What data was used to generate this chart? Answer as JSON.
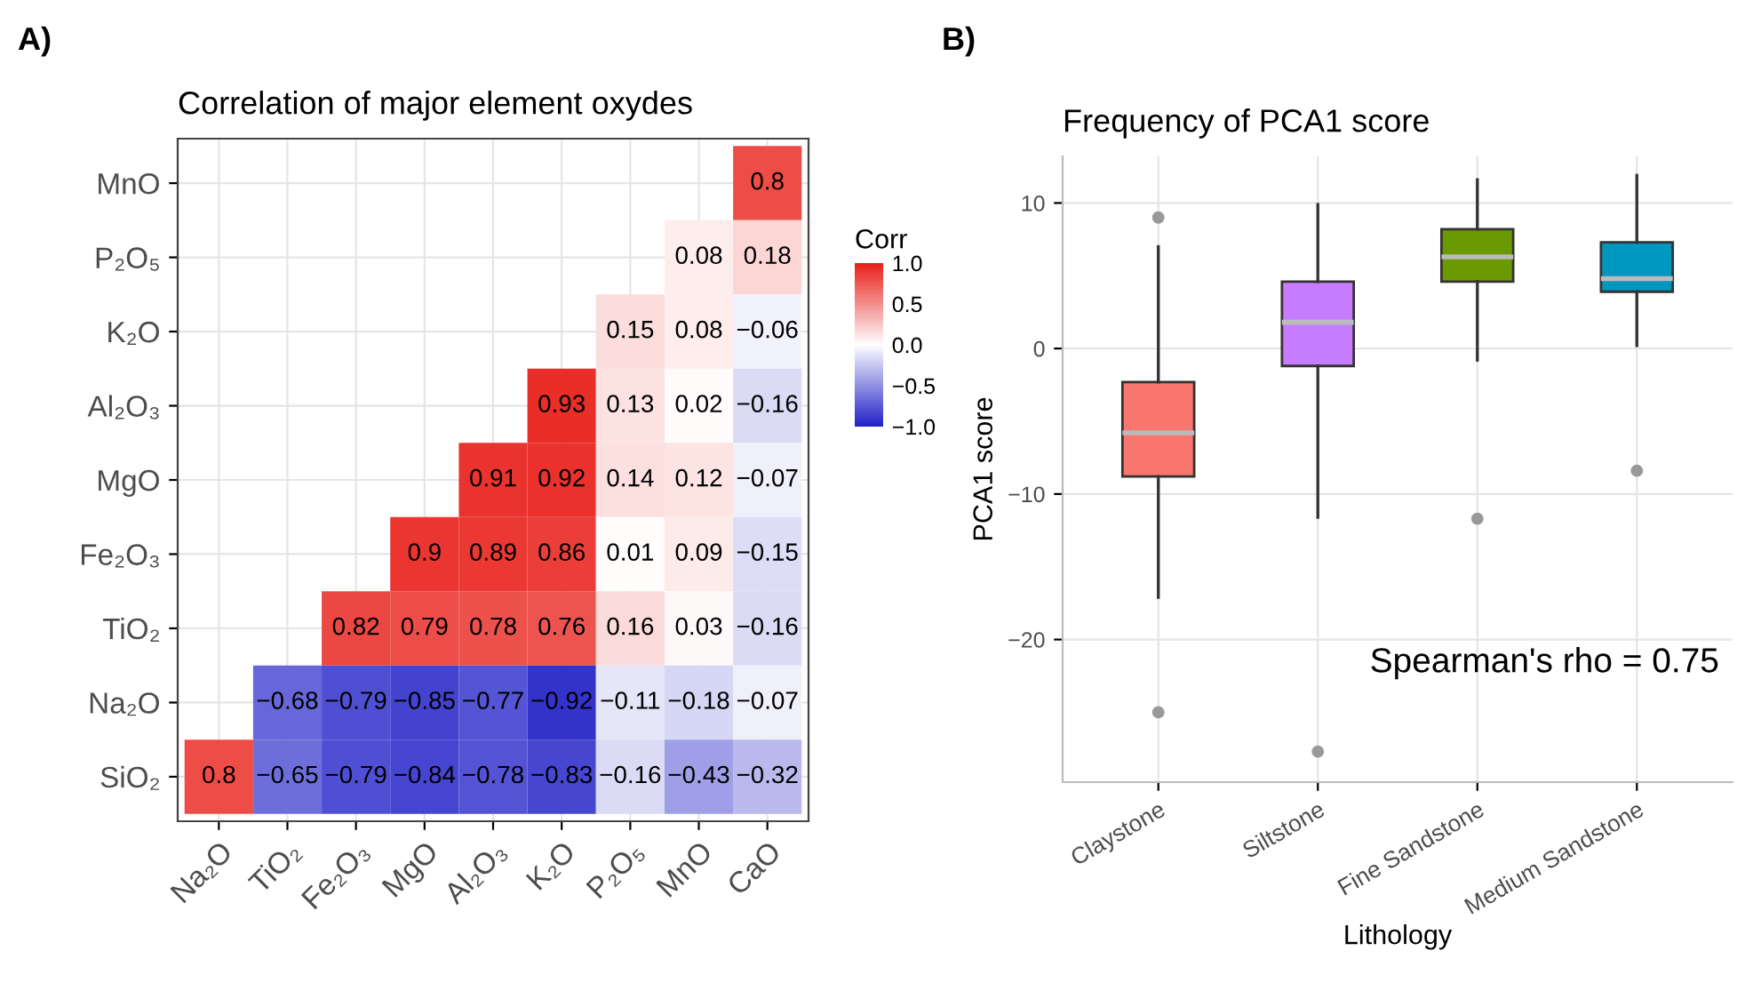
{
  "chart_data": [
    {
      "type": "heatmap",
      "title": "Correlation of major element oxydes",
      "annotations": [
        "A)"
      ],
      "categories": [
        "Na₂O",
        "TiO₂",
        "Fe₂O₃",
        "MgO",
        "Al₂O₃",
        "K₂O",
        "P₂O₅",
        "MnO",
        "CaO"
      ],
      "y_categories": [
        "MnO",
        "P₂O₅",
        "K₂O",
        "Al₂O₃",
        "MgO",
        "Fe₂O₃",
        "TiO₂",
        "Na₂O",
        "SiO₂"
      ],
      "cells": [
        [
          null,
          null,
          null,
          null,
          null,
          null,
          null,
          null,
          0.8
        ],
        [
          null,
          null,
          null,
          null,
          null,
          null,
          null,
          0.08,
          0.18
        ],
        [
          null,
          null,
          null,
          null,
          null,
          null,
          0.15,
          0.08,
          -0.06
        ],
        [
          null,
          null,
          null,
          null,
          null,
          0.93,
          0.13,
          0.02,
          -0.16
        ],
        [
          null,
          null,
          null,
          null,
          0.91,
          0.92,
          0.14,
          0.12,
          -0.07
        ],
        [
          null,
          null,
          null,
          0.9,
          0.89,
          0.86,
          0.01,
          0.09,
          -0.15
        ],
        [
          null,
          null,
          0.82,
          0.79,
          0.78,
          0.76,
          0.16,
          0.03,
          -0.16
        ],
        [
          null,
          -0.68,
          -0.79,
          -0.85,
          -0.77,
          -0.92,
          -0.11,
          -0.18,
          -0.07
        ],
        [
          0.8,
          -0.65,
          -0.79,
          -0.84,
          -0.78,
          -0.83,
          -0.16,
          -0.43,
          -0.32
        ]
      ],
      "data_labels": true,
      "clabel": "Corr",
      "clim": [
        -1,
        1
      ],
      "cticks": [
        {
          "value": -1,
          "label": "−1.0"
        },
        {
          "value": -0.5,
          "label": "−0.5"
        },
        {
          "value": 0,
          "label": "0.0"
        },
        {
          "value": 0.5,
          "label": "0.5"
        },
        {
          "value": 1,
          "label": "1.0"
        }
      ],
      "grid": true
    },
    {
      "type": "box",
      "title": "Frequency of PCA1 score",
      "annotations": [
        "B)",
        "Spearman's rho = 0.75"
      ],
      "xlabel": "Lithology",
      "ylabel": "PCA1 score",
      "categories": [
        "Claystone",
        "Siltstone",
        "Fine Sandstone",
        "Medium Sandstone"
      ],
      "colors": [
        "#f8766d",
        "#c77cff",
        "#6b9a00",
        "#0096bf"
      ],
      "boxes": [
        {
          "low": -17.1,
          "q1": -8.8,
          "median": -5.8,
          "q3": -2.3,
          "high": 7.0,
          "outliers": [
            9.0,
            -25.0
          ]
        },
        {
          "low": -11.6,
          "q1": -1.2,
          "median": 1.8,
          "q3": 4.6,
          "high": 9.9,
          "outliers": [
            -27.7
          ]
        },
        {
          "low": -0.8,
          "q1": 4.6,
          "median": 6.3,
          "q3": 8.2,
          "high": 11.6,
          "outliers": [
            -11.7
          ]
        },
        {
          "low": 0.2,
          "q1": 3.9,
          "median": 4.8,
          "q3": 7.3,
          "high": 11.9,
          "outliers": [
            -8.4
          ]
        }
      ],
      "ylim": [
        -29.8,
        13.2
      ],
      "yticks": [
        {
          "value": -20,
          "label": "−20"
        },
        {
          "value": -10,
          "label": "−10"
        },
        0,
        10
      ],
      "grid": true
    }
  ]
}
